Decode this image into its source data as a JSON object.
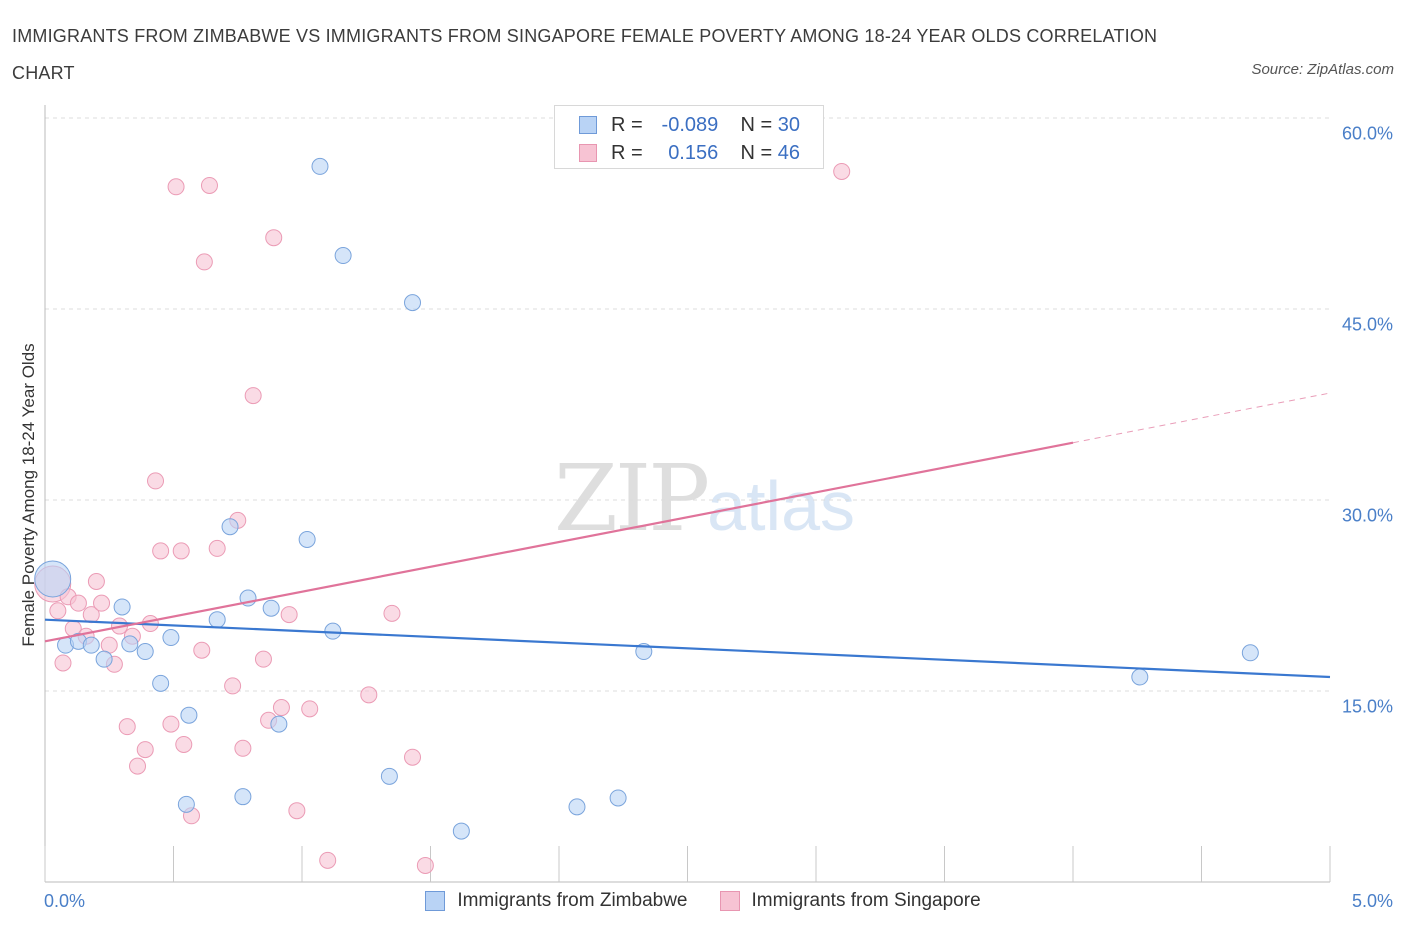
{
  "header": {
    "title": "IMMIGRANTS FROM ZIMBABWE VS IMMIGRANTS FROM SINGAPORE FEMALE POVERTY AMONG 18-24 YEAR OLDS CORRELATION CHART",
    "source": "Source: ZipAtlas.com"
  },
  "watermark": {
    "zip": "ZIP",
    "atlas": "atlas"
  },
  "legend": {
    "series1": {
      "r_label": "R =",
      "r_value": "-0.089",
      "n_label": "N =",
      "n_value": "30"
    },
    "series2": {
      "r_label": "R =",
      "r_value": "0.156",
      "n_label": "N =",
      "n_value": "46"
    }
  },
  "chart_data": {
    "type": "scatter",
    "title": "IMMIGRANTS FROM ZIMBABWE VS IMMIGRANTS FROM SINGAPORE FEMALE POVERTY AMONG 18-24 YEAR OLDS CORRELATION CHART",
    "xlabel": "",
    "ylabel": "Female Poverty Among 18-24 Year Olds",
    "xlim": [
      0,
      5
    ],
    "ylim": [
      0,
      60
    ],
    "x_tick_labels": [
      "0.0%",
      "5.0%"
    ],
    "y_tick_values": [
      15,
      30,
      45,
      60
    ],
    "y_tick_labels": [
      "15.0%",
      "30.0%",
      "45.0%",
      "60.0%"
    ],
    "grid": "horizontal dashed",
    "legend_position": "top-center",
    "colors": {
      "zimbabwe": "#3a78d0",
      "singapore": "#e0739a",
      "zimbabwe_fill": "#b9d3f5",
      "singapore_fill": "#f7c3d3"
    },
    "series": [
      {
        "name": "Immigrants from Zimbabwe",
        "R": -0.089,
        "N": 30,
        "trend": {
          "x": [
            0.0,
            5.0
          ],
          "y": [
            20.6,
            16.1
          ]
        },
        "points": [
          {
            "x": 0.03,
            "y": 23.8,
            "big": true
          },
          {
            "x": 0.08,
            "y": 18.6
          },
          {
            "x": 0.13,
            "y": 18.9
          },
          {
            "x": 0.18,
            "y": 18.6
          },
          {
            "x": 0.23,
            "y": 17.5
          },
          {
            "x": 0.3,
            "y": 21.6
          },
          {
            "x": 0.33,
            "y": 18.7
          },
          {
            "x": 0.39,
            "y": 18.1
          },
          {
            "x": 0.45,
            "y": 15.6
          },
          {
            "x": 0.49,
            "y": 19.2
          },
          {
            "x": 0.56,
            "y": 13.1
          },
          {
            "x": 0.55,
            "y": 6.1
          },
          {
            "x": 0.67,
            "y": 20.6
          },
          {
            "x": 0.72,
            "y": 27.9
          },
          {
            "x": 0.77,
            "y": 6.7
          },
          {
            "x": 0.79,
            "y": 22.3
          },
          {
            "x": 0.88,
            "y": 21.5
          },
          {
            "x": 0.91,
            "y": 12.4
          },
          {
            "x": 1.02,
            "y": 26.9
          },
          {
            "x": 1.07,
            "y": 56.2
          },
          {
            "x": 1.12,
            "y": 19.7
          },
          {
            "x": 1.16,
            "y": 49.2
          },
          {
            "x": 1.34,
            "y": 8.3
          },
          {
            "x": 1.43,
            "y": 45.5
          },
          {
            "x": 1.62,
            "y": 4.0
          },
          {
            "x": 2.07,
            "y": 5.9
          },
          {
            "x": 2.23,
            "y": 6.6
          },
          {
            "x": 2.33,
            "y": 18.1
          },
          {
            "x": 4.26,
            "y": 16.1
          },
          {
            "x": 4.69,
            "y": 18.0
          }
        ]
      },
      {
        "name": "Immigrants from Singapore",
        "R": 0.156,
        "N": 46,
        "trend": {
          "x": [
            0.0,
            4.0
          ],
          "y": [
            18.9,
            34.5
          ],
          "dashed_to": {
            "x": 5.0,
            "y": 38.4
          }
        },
        "points": [
          {
            "x": 0.03,
            "y": 23.4,
            "big": true
          },
          {
            "x": 0.05,
            "y": 21.3
          },
          {
            "x": 0.07,
            "y": 17.2
          },
          {
            "x": 0.09,
            "y": 22.4
          },
          {
            "x": 0.11,
            "y": 19.9
          },
          {
            "x": 0.13,
            "y": 21.9
          },
          {
            "x": 0.16,
            "y": 19.3
          },
          {
            "x": 0.18,
            "y": 21.0
          },
          {
            "x": 0.2,
            "y": 23.6
          },
          {
            "x": 0.22,
            "y": 21.9
          },
          {
            "x": 0.25,
            "y": 18.6
          },
          {
            "x": 0.27,
            "y": 17.1
          },
          {
            "x": 0.29,
            "y": 20.1
          },
          {
            "x": 0.32,
            "y": 12.2
          },
          {
            "x": 0.34,
            "y": 19.3
          },
          {
            "x": 0.36,
            "y": 9.1
          },
          {
            "x": 0.39,
            "y": 10.4
          },
          {
            "x": 0.41,
            "y": 20.3
          },
          {
            "x": 0.43,
            "y": 31.5
          },
          {
            "x": 0.45,
            "y": 26.0
          },
          {
            "x": 0.49,
            "y": 12.4
          },
          {
            "x": 0.51,
            "y": 54.6
          },
          {
            "x": 0.53,
            "y": 26.0
          },
          {
            "x": 0.54,
            "y": 10.8
          },
          {
            "x": 0.57,
            "y": 5.2
          },
          {
            "x": 0.61,
            "y": 18.2
          },
          {
            "x": 0.62,
            "y": 48.7
          },
          {
            "x": 0.64,
            "y": 54.7
          },
          {
            "x": 0.67,
            "y": 26.2
          },
          {
            "x": 0.73,
            "y": 15.4
          },
          {
            "x": 0.75,
            "y": 28.4
          },
          {
            "x": 0.77,
            "y": 10.5
          },
          {
            "x": 0.81,
            "y": 38.2
          },
          {
            "x": 0.85,
            "y": 17.5
          },
          {
            "x": 0.87,
            "y": 12.7
          },
          {
            "x": 0.89,
            "y": 50.6
          },
          {
            "x": 0.92,
            "y": 13.7
          },
          {
            "x": 0.95,
            "y": 21.0
          },
          {
            "x": 0.98,
            "y": 5.6
          },
          {
            "x": 1.03,
            "y": 13.6
          },
          {
            "x": 1.1,
            "y": 1.7
          },
          {
            "x": 1.26,
            "y": 14.7
          },
          {
            "x": 1.35,
            "y": 21.1
          },
          {
            "x": 1.43,
            "y": 9.8
          },
          {
            "x": 1.48,
            "y": 1.3
          },
          {
            "x": 3.1,
            "y": 55.8
          }
        ]
      }
    ]
  },
  "bottom_legend": {
    "item1": "Immigrants from Zimbabwe",
    "item2": "Immigrants from Singapore"
  }
}
